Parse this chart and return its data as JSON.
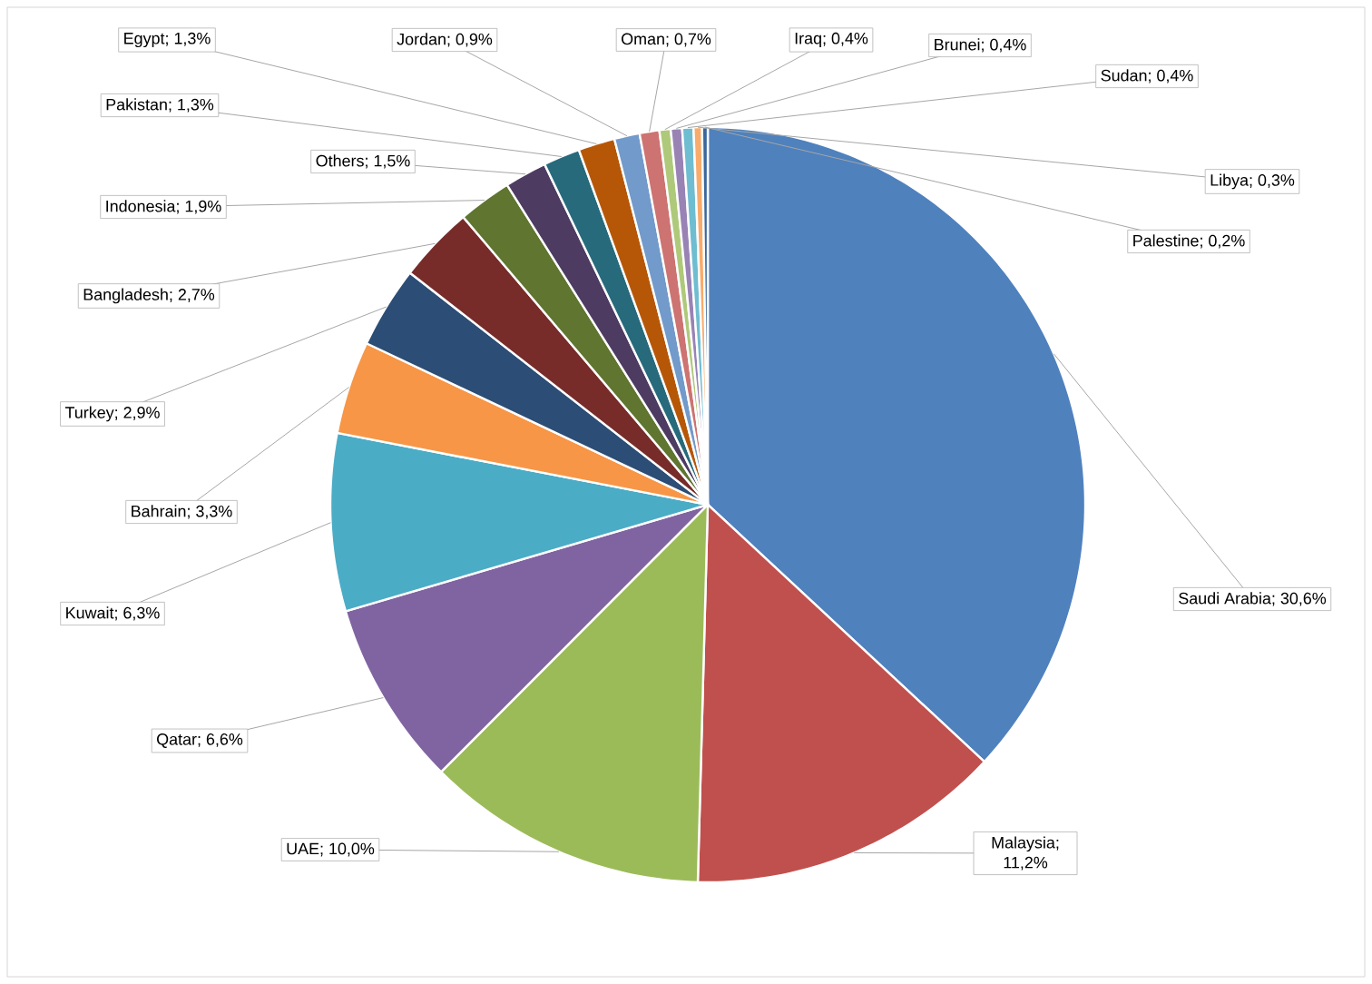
{
  "chart_data": {
    "type": "pie",
    "categories": [
      "Saudi Arabia; 30,6%",
      "Malaysia; 11,2%",
      "UAE; 10,0%",
      "Qatar; 6,6%",
      "Kuwait; 6,3%",
      "Bahrain; 3,3%",
      "Turkey; 2,9%",
      "Bangladesh; 2,7%",
      "Indonesia; 1,9%",
      "Others; 1,5%",
      "Pakistan; 1,3%",
      "Egypt; 1,3%",
      "Jordan; 0,9%",
      "Oman; 0,7%",
      "Iraq; 0,4%",
      "Brunei; 0,4%",
      "Sudan; 0,4%",
      "Libya; 0,3%",
      "Palestine; 0,2%"
    ],
    "values": [
      30.6,
      11.2,
      10.0,
      6.6,
      6.3,
      3.3,
      2.9,
      2.7,
      1.9,
      1.5,
      1.3,
      1.3,
      0.9,
      0.7,
      0.4,
      0.4,
      0.4,
      0.3,
      0.2
    ],
    "colors": [
      "#4f81bd",
      "#c0504d",
      "#9bbb59",
      "#8064a2",
      "#4bacc6",
      "#f79646",
      "#2c4d75",
      "#772c2a",
      "#5f7530",
      "#4d3b62",
      "#276a7c",
      "#b65708",
      "#729aca",
      "#cd7371",
      "#afc97a",
      "#9983b5",
      "#6fbdd1",
      "#f9ab6b",
      "#3a679c"
    ]
  }
}
